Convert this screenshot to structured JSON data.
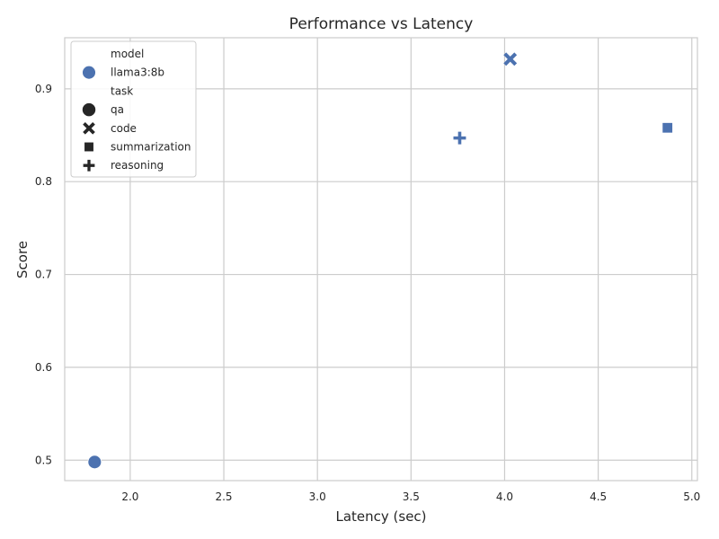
{
  "chart_data": {
    "type": "scatter",
    "title": "Performance vs Latency",
    "xlabel": "Latency (sec)",
    "ylabel": "Score",
    "xlim": [
      1.65,
      5.03
    ],
    "ylim": [
      0.478,
      0.955
    ],
    "xticks": [
      2.0,
      2.5,
      3.0,
      3.5,
      4.0,
      4.5,
      5.0
    ],
    "xtick_labels": [
      "2.0",
      "2.5",
      "3.0",
      "3.5",
      "4.0",
      "4.5",
      "5.0"
    ],
    "yticks": [
      0.5,
      0.6,
      0.7,
      0.8,
      0.9
    ],
    "ytick_labels": [
      "0.5",
      "0.6",
      "0.7",
      "0.8",
      "0.9"
    ],
    "grid": true,
    "legend_position": "upper-left",
    "series_color": "#4c72b0",
    "legend": {
      "model_title": "model",
      "model_entries": [
        "llama3:8b"
      ],
      "task_title": "task",
      "task_entries": [
        {
          "label": "qa",
          "marker": "circle"
        },
        {
          "label": "code",
          "marker": "x"
        },
        {
          "label": "summarization",
          "marker": "square"
        },
        {
          "label": "reasoning",
          "marker": "plus"
        }
      ]
    },
    "points": [
      {
        "model": "llama3:8b",
        "task": "qa",
        "marker": "circle",
        "x": 1.81,
        "y": 0.498
      },
      {
        "model": "llama3:8b",
        "task": "code",
        "marker": "x",
        "x": 4.03,
        "y": 0.932
      },
      {
        "model": "llama3:8b",
        "task": "summarization",
        "marker": "square",
        "x": 4.87,
        "y": 0.858
      },
      {
        "model": "llama3:8b",
        "task": "reasoning",
        "marker": "plus",
        "x": 3.76,
        "y": 0.847
      }
    ]
  }
}
